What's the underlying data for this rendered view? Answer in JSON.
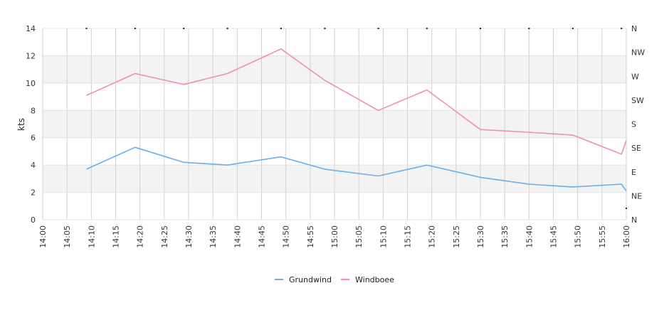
{
  "chart_data": {
    "type": "line",
    "title": "",
    "ylabel": "kts",
    "xlabel": "",
    "ylim": [
      0,
      14
    ],
    "y_ticks": [
      "0",
      "2",
      "4",
      "6",
      "8",
      "10",
      "12",
      "14"
    ],
    "x_ticks": [
      "14:00",
      "14:05",
      "14:10",
      "14:15",
      "14:20",
      "14:25",
      "14:30",
      "14:35",
      "14:40",
      "14:45",
      "14:50",
      "14:55",
      "15:00",
      "15:05",
      "15:10",
      "15:15",
      "15:20",
      "15:25",
      "15:30",
      "15:35",
      "15:40",
      "15:45",
      "15:50",
      "15:55",
      "16:00"
    ],
    "right_axis_labels": [
      "N",
      "NE",
      "E",
      "SE",
      "S",
      "SW",
      "W",
      "NW",
      "N"
    ],
    "grid": true,
    "legend_position": "bottom",
    "series": [
      {
        "name": "Grundwind",
        "color": "#6aaee8",
        "x": [
          "14:09",
          "14:19",
          "14:29",
          "14:38",
          "14:49",
          "14:58",
          "15:09",
          "15:19",
          "15:30",
          "15:40",
          "15:49",
          "15:59",
          "16:00"
        ],
        "values": [
          3.7,
          5.3,
          4.2,
          4.0,
          4.6,
          3.7,
          3.2,
          4.0,
          3.1,
          2.6,
          2.4,
          2.6,
          2.1
        ]
      },
      {
        "name": "Windboee",
        "color": "#f28cb8",
        "x": [
          "14:09",
          "14:19",
          "14:29",
          "14:38",
          "14:49",
          "14:58",
          "15:09",
          "15:19",
          "15:30",
          "15:40",
          "15:49",
          "15:59",
          "16:00"
        ],
        "values": [
          9.1,
          10.7,
          9.9,
          10.7,
          12.5,
          10.2,
          8.0,
          9.5,
          6.6,
          6.4,
          6.2,
          4.8,
          5.8
        ]
      }
    ]
  }
}
